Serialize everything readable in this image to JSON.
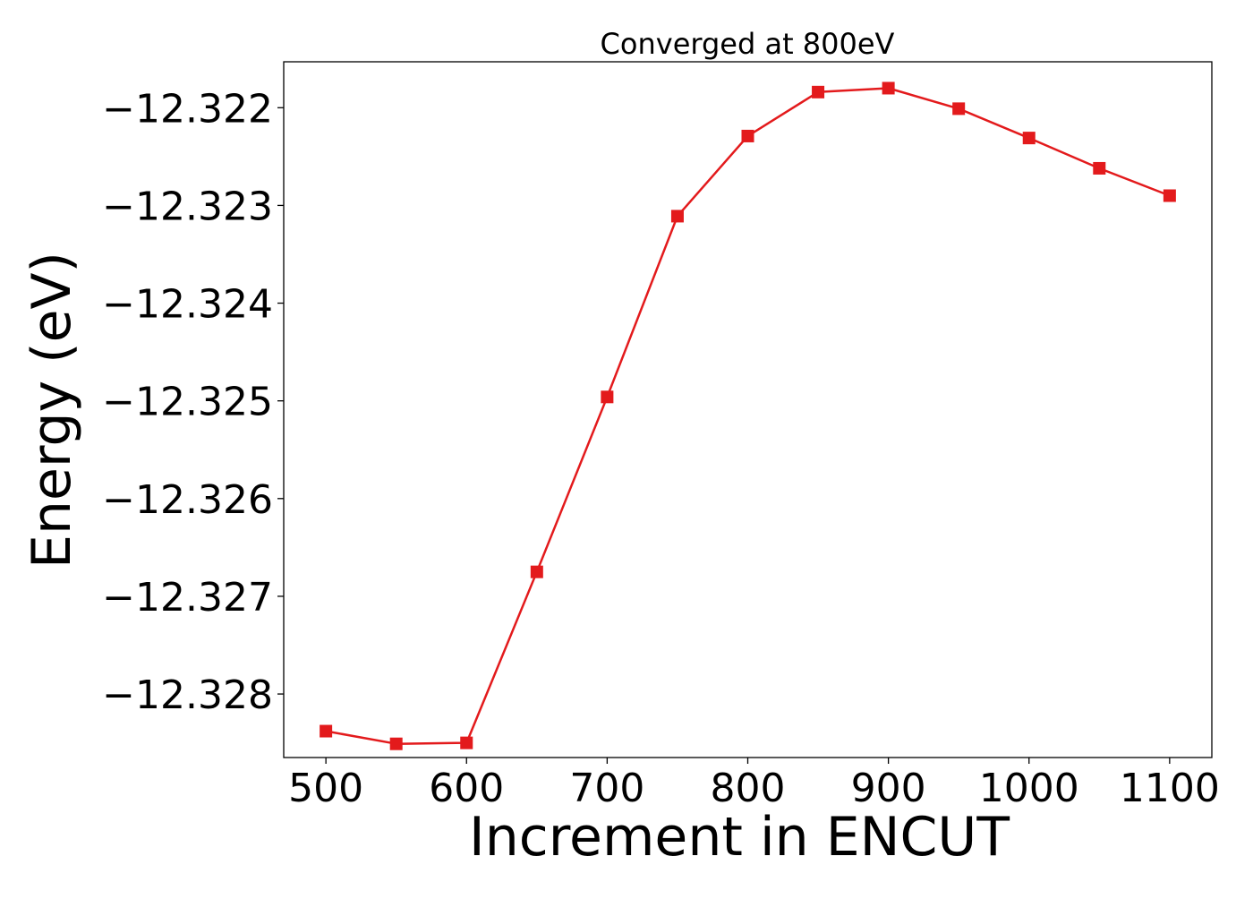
{
  "chart_data": {
    "type": "line",
    "title": "Converged at 800eV",
    "xlabel": "Increment in ENCUT",
    "ylabel": "Energy (eV)",
    "xlim": [
      470,
      1130
    ],
    "ylim": [
      -12.32865,
      -12.32153
    ],
    "x_ticks": [
      500,
      600,
      700,
      800,
      900,
      1000,
      1100
    ],
    "x_tick_labels": [
      "500",
      "600",
      "700",
      "800",
      "900",
      "1000",
      "1100"
    ],
    "y_ticks": [
      -12.322,
      -12.323,
      -12.324,
      -12.325,
      -12.326,
      -12.327,
      -12.328
    ],
    "y_tick_labels": [
      "−12.322",
      "−12.323",
      "−12.324",
      "−12.325",
      "−12.326",
      "−12.327",
      "−12.328"
    ],
    "grid": false,
    "legend": "none",
    "series": [
      {
        "color": "#e31a1c",
        "marker": "square",
        "x": [
          500,
          550,
          600,
          650,
          700,
          750,
          800,
          850,
          900,
          950,
          1000,
          1050,
          1100
        ],
        "y": [
          -12.32838,
          -12.32851,
          -12.3285,
          -12.32675,
          -12.32496,
          -12.32311,
          -12.32229,
          -12.32184,
          -12.3218,
          -12.32201,
          -12.32231,
          -12.32262,
          -12.3229
        ]
      }
    ]
  }
}
